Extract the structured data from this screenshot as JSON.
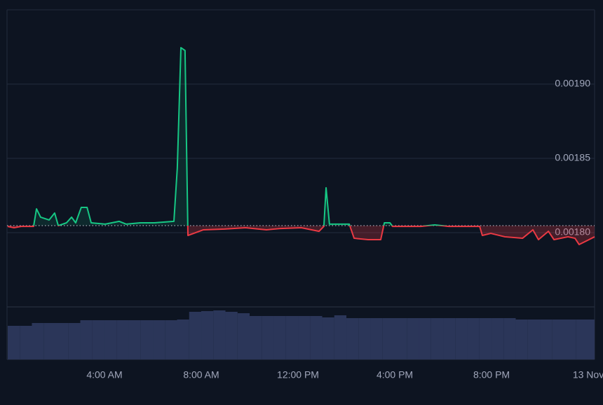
{
  "chart_data": {
    "type": "baseline-line",
    "x": [
      0,
      0.26,
      0.55,
      1.07,
      1.19,
      1.36,
      1.71,
      1.94,
      2.09,
      2.43,
      2.64,
      2.81,
      3.04,
      3.28,
      3.45,
      4.03,
      4.61,
      4.9,
      5.48,
      6.06,
      6.87,
      7.01,
      7.16,
      7.33,
      7.45,
      8.09,
      8.96,
      9.83,
      10.7,
      11.28,
      12.14,
      12.87,
      13.07,
      13.16,
      13.3,
      14.12,
      14.32,
      14.9,
      15.42,
      15.57,
      15.8,
      15.91,
      17.07,
      17.65,
      18.23,
      19.51,
      19.62,
      19.97,
      20.55,
      21.28,
      21.71,
      21.94,
      22.35,
      22.58,
      23.16,
      23.45,
      23.62,
      23.97,
      24.26
    ],
    "values": [
      0.0018042,
      0.0018033,
      0.0018042,
      0.0018042,
      0.001816,
      0.0018104,
      0.0018085,
      0.0018132,
      0.0018047,
      0.0018066,
      0.0018104,
      0.0018066,
      0.001817,
      0.001817,
      0.0018066,
      0.0018057,
      0.0018076,
      0.0018057,
      0.0018066,
      0.0018066,
      0.0018076,
      0.0018434,
      0.0019245,
      0.0019226,
      0.0017981,
      0.0018019,
      0.0018024,
      0.0018033,
      0.0018019,
      0.0018028,
      0.0018033,
      0.0018009,
      0.0018042,
      0.0018302,
      0.0018057,
      0.0018057,
      0.0017962,
      0.0017953,
      0.0017953,
      0.0018066,
      0.0018066,
      0.0018042,
      0.0018042,
      0.0018052,
      0.0018042,
      0.0018042,
      0.0017981,
      0.0017995,
      0.0017972,
      0.0017962,
      0.0018019,
      0.0017953,
      0.0018009,
      0.0017953,
      0.0017972,
      0.0017962,
      0.001792,
      0.0017948,
      0.0017972
    ],
    "baseline": 0.0018047,
    "up_color": "#16c784",
    "down_color": "#ea3943",
    "xlim": [
      0,
      24.26
    ],
    "xticks": [
      {
        "value": 4,
        "label": "4:00 AM"
      },
      {
        "value": 8,
        "label": "8:00 AM"
      },
      {
        "value": 12,
        "label": "12:00 PM"
      },
      {
        "value": 16,
        "label": "4:00 PM"
      },
      {
        "value": 20,
        "label": "8:00 PM"
      },
      {
        "value": 24,
        "label": "13 Nov"
      }
    ],
    "ylim": [
      0.00175,
      0.00195
    ],
    "yticks": [
      {
        "value": 0.0018,
        "label": "0.00180"
      },
      {
        "value": 0.00185,
        "label": "0.00185"
      },
      {
        "value": 0.0019,
        "label": "0.00190"
      }
    ],
    "grid": true,
    "volume": {
      "color": "#2b3659",
      "x": [
        0,
        0.5,
        1,
        1.5,
        2,
        2.5,
        3,
        3.5,
        4,
        4.5,
        5,
        5.5,
        6,
        6.5,
        7,
        7.5,
        8,
        8.5,
        9,
        9.5,
        10,
        10.5,
        11,
        11.5,
        12,
        12.5,
        13,
        13.5,
        14,
        14.5,
        15,
        15.5,
        16,
        16.5,
        17,
        17.5,
        18,
        18.5,
        19,
        19.5,
        20,
        20.5,
        21,
        21.5,
        22,
        22.5,
        23,
        23.5
      ],
      "values": [
        48,
        48,
        52,
        52,
        52,
        52,
        56,
        56,
        56,
        56,
        56,
        56,
        56,
        56,
        57,
        68,
        69,
        70,
        68,
        66,
        62,
        62,
        62,
        62,
        62,
        62,
        60,
        63,
        59,
        59,
        59,
        59,
        59,
        59,
        59,
        59,
        59,
        59,
        59,
        59,
        59,
        59,
        57,
        57,
        57,
        57,
        57,
        57
      ],
      "ylim": [
        0,
        75
      ]
    }
  }
}
